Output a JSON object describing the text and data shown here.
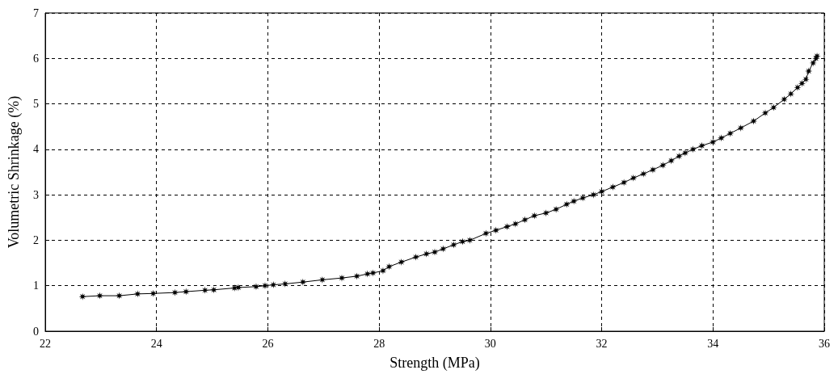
{
  "chart_data": {
    "type": "line",
    "xlabel": "Strength (MPa)",
    "ylabel": "Volumetric Shrinkage (%)",
    "xlim": [
      22,
      36
    ],
    "xticks": [
      22,
      24,
      26,
      28,
      30,
      32,
      34,
      36
    ],
    "ylim": [
      0,
      7
    ],
    "yticks": [
      0,
      1,
      2,
      3,
      4,
      5,
      6,
      7
    ],
    "grid": true,
    "marker": "star",
    "line_style": "solid",
    "series": [
      {
        "color": "#000000",
        "x": [
          22.67,
          22.98,
          23.33,
          23.66,
          23.94,
          24.33,
          24.53,
          24.87,
          25.03,
          25.4,
          25.47,
          25.79,
          25.95,
          26.1,
          26.31,
          26.63,
          26.98,
          27.33,
          27.6,
          27.79,
          27.89,
          28.07,
          28.18,
          28.4,
          28.66,
          28.85,
          29.0,
          29.15,
          29.34,
          29.5,
          29.63,
          29.92,
          30.1,
          30.3,
          30.45,
          30.62,
          30.79,
          31.0,
          31.18,
          31.37,
          31.5,
          31.66,
          31.85,
          32.0,
          32.2,
          32.4,
          32.57,
          32.75,
          32.92,
          33.1,
          33.25,
          33.39,
          33.5,
          33.64,
          33.8,
          34.0,
          34.15,
          34.31,
          34.5,
          34.73,
          34.94,
          35.09,
          35.28,
          35.4,
          35.52,
          35.6,
          35.67,
          35.72,
          35.8,
          35.85,
          35.87
        ],
        "values": [
          0.76,
          0.78,
          0.78,
          0.82,
          0.83,
          0.85,
          0.87,
          0.9,
          0.91,
          0.95,
          0.96,
          0.98,
          1.0,
          1.02,
          1.04,
          1.08,
          1.13,
          1.17,
          1.21,
          1.26,
          1.28,
          1.33,
          1.42,
          1.52,
          1.63,
          1.7,
          1.74,
          1.81,
          1.9,
          1.97,
          2.0,
          2.15,
          2.22,
          2.3,
          2.36,
          2.45,
          2.54,
          2.6,
          2.68,
          2.79,
          2.86,
          2.93,
          3.0,
          3.07,
          3.17,
          3.27,
          3.37,
          3.46,
          3.55,
          3.65,
          3.75,
          3.85,
          3.92,
          4.0,
          4.08,
          4.16,
          4.25,
          4.35,
          4.47,
          4.62,
          4.8,
          4.92,
          5.1,
          5.22,
          5.36,
          5.45,
          5.54,
          5.72,
          5.9,
          6.0,
          6.05
        ]
      }
    ]
  }
}
